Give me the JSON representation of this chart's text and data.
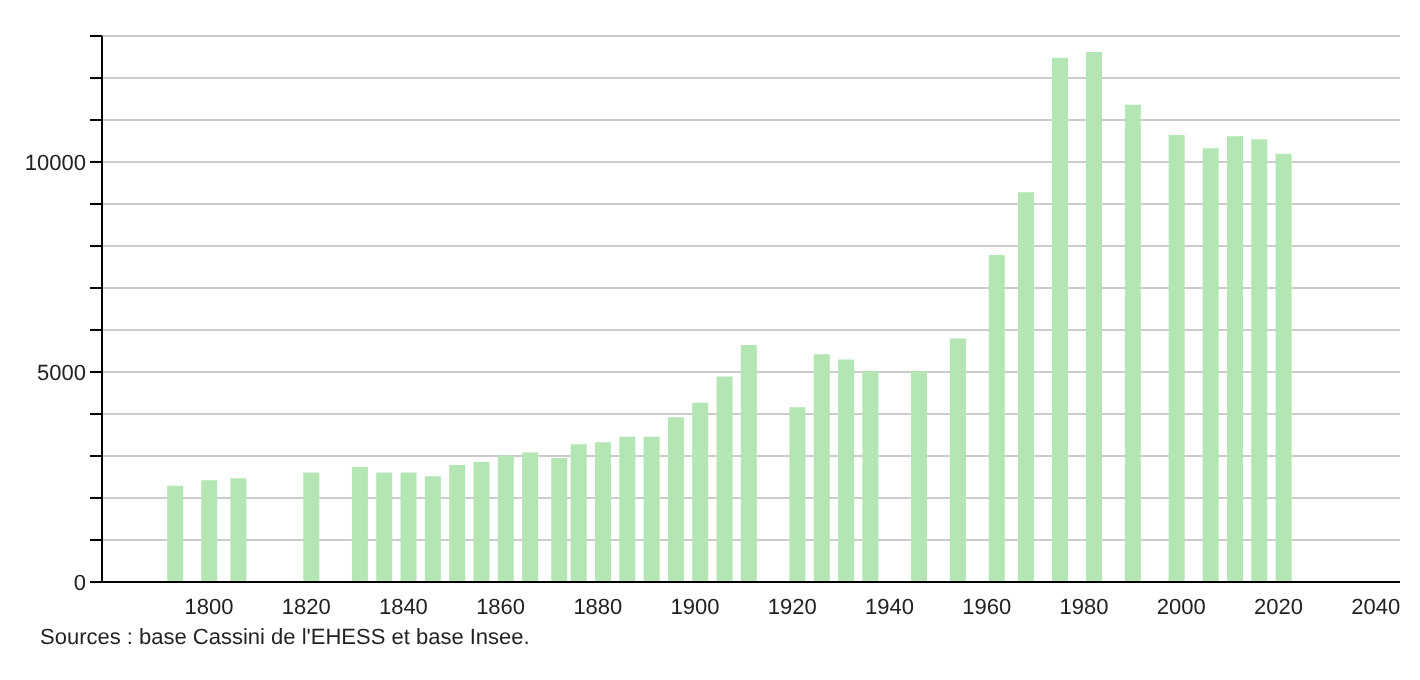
{
  "chart_data": {
    "type": "bar",
    "x": [
      1793,
      1800,
      1806,
      1821,
      1831,
      1836,
      1841,
      1846,
      1851,
      1856,
      1861,
      1866,
      1872,
      1876,
      1881,
      1886,
      1891,
      1896,
      1901,
      1906,
      1911,
      1921,
      1926,
      1931,
      1936,
      1946,
      1954,
      1962,
      1968,
      1975,
      1982,
      1990,
      1999,
      2006,
      2011,
      2016,
      2021
    ],
    "values": [
      2290,
      2425,
      2470,
      2605,
      2740,
      2605,
      2605,
      2515,
      2785,
      2860,
      3010,
      3085,
      2950,
      3280,
      3325,
      3460,
      3460,
      3920,
      4265,
      4895,
      5645,
      4160,
      5420,
      5300,
      5015,
      5015,
      5795,
      7785,
      9280,
      12485,
      12620,
      11365,
      10645,
      10330,
      10615,
      10540,
      10195
    ],
    "color": "#b3e6b3",
    "xlim": [
      1778,
      2045
    ],
    "xticks": [
      1800,
      1820,
      1840,
      1860,
      1880,
      1900,
      1920,
      1940,
      1960,
      1980,
      2000,
      2020,
      2040
    ],
    "ylim": [
      0,
      13000
    ],
    "yticks": [
      0,
      {
        "value": 1000,
        "label": null
      },
      {
        "value": 2000,
        "label": null
      },
      {
        "value": 3000,
        "label": null
      },
      {
        "value": 4000,
        "label": null
      },
      5000,
      {
        "value": 6000,
        "label": null
      },
      {
        "value": 7000,
        "label": null
      },
      {
        "value": 8000,
        "label": null
      },
      {
        "value": 9000,
        "label": null
      },
      10000,
      {
        "value": 11000,
        "label": null
      },
      {
        "value": 12000,
        "label": null
      },
      {
        "value": 13000,
        "label": null
      }
    ],
    "grid": "y",
    "annotations": [
      "Sources : base Cassini de l'EHESS et base Insee."
    ]
  }
}
